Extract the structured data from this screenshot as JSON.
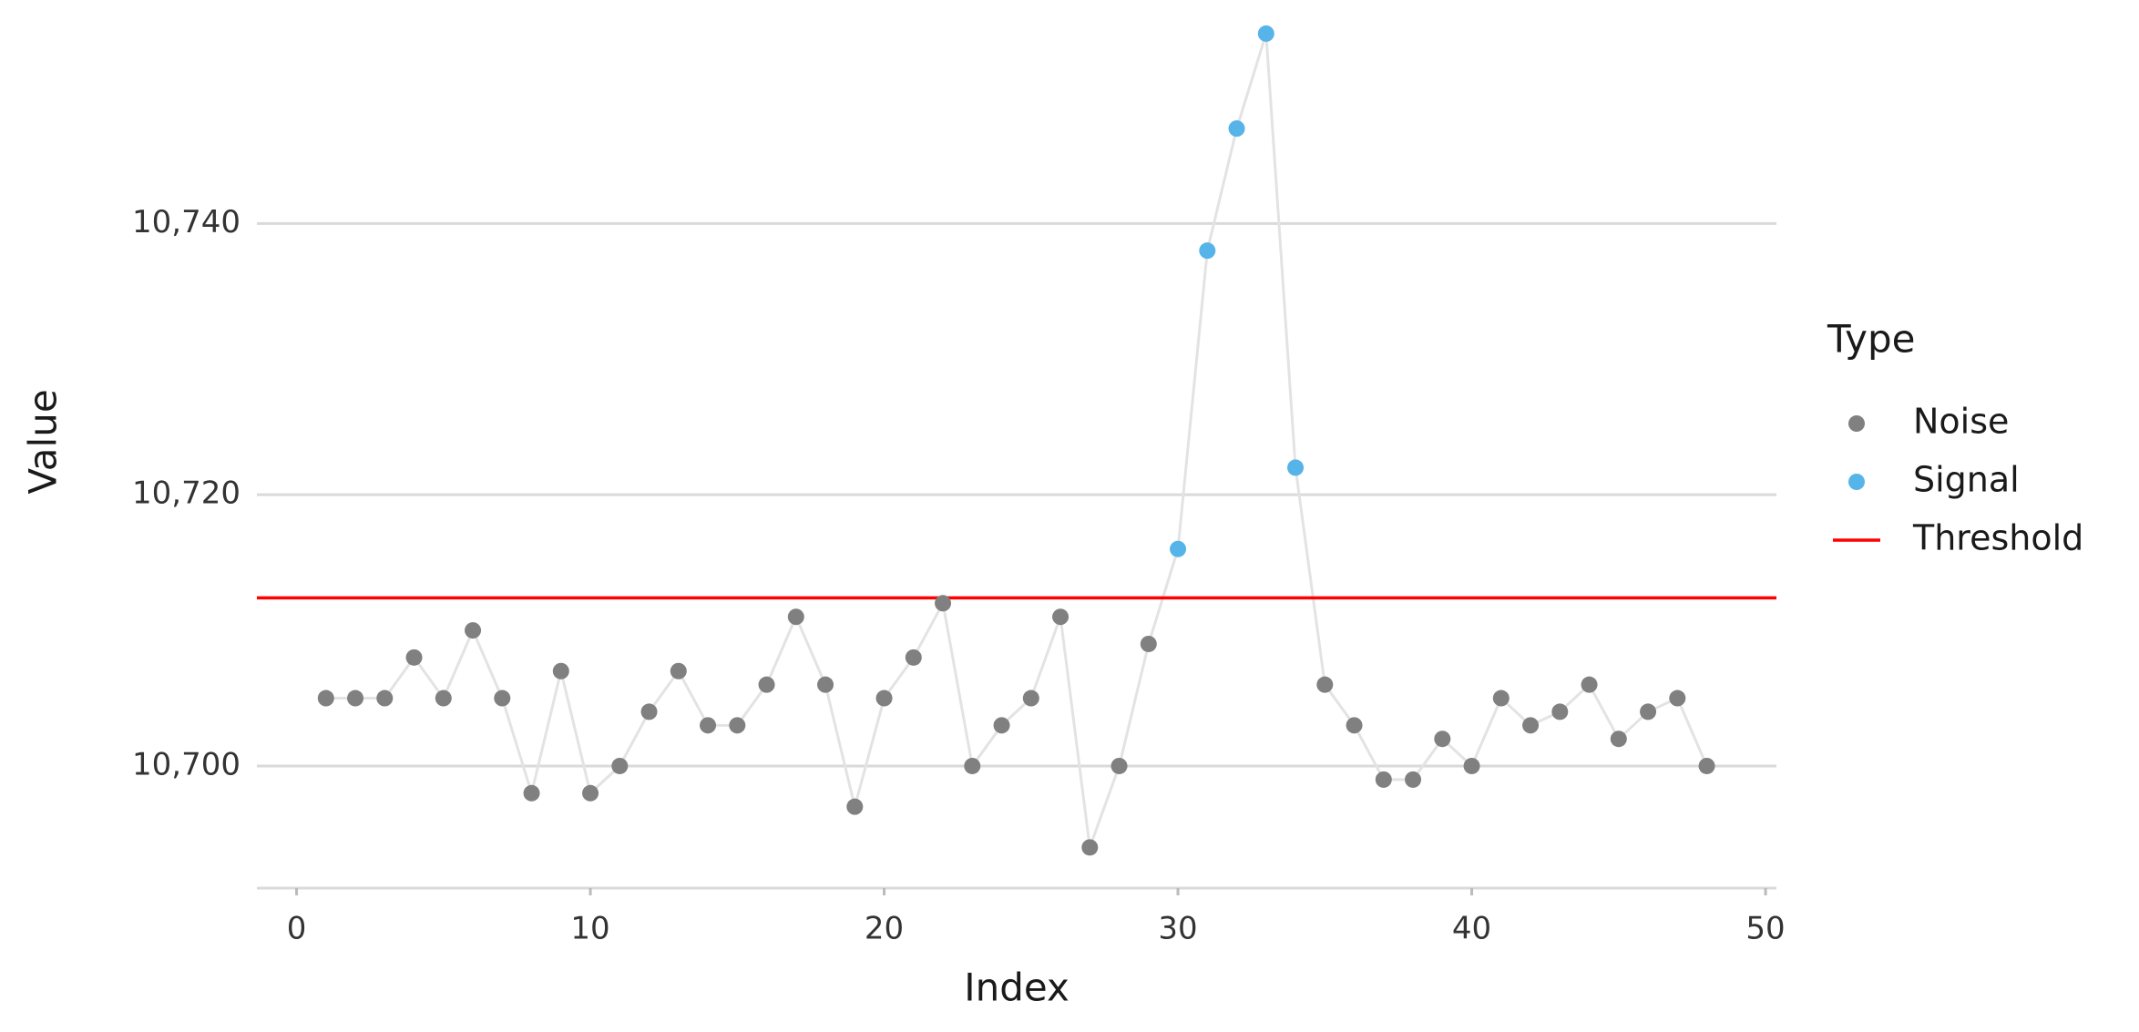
{
  "chart_data": {
    "type": "line-scatter",
    "x_label": "Index",
    "y_label": "Value",
    "legend_title": "Type",
    "x": [
      1,
      2,
      3,
      4,
      5,
      6,
      7,
      8,
      9,
      10,
      11,
      12,
      13,
      14,
      15,
      16,
      17,
      18,
      19,
      20,
      21,
      22,
      23,
      24,
      25,
      26,
      27,
      28,
      29,
      30,
      31,
      32,
      33,
      34,
      35,
      36,
      37,
      38,
      39,
      40,
      41,
      42,
      43,
      44,
      45,
      46,
      47,
      48
    ],
    "series": [
      {
        "name": "Noise",
        "color": "#808080",
        "values": [
          10705,
          10705,
          10705,
          10708,
          10705,
          10710,
          10705,
          10698,
          10707,
          10698,
          10700,
          10704,
          10707,
          10703,
          10703,
          10706,
          10711,
          10706,
          10697,
          10705,
          10708,
          10712,
          10700,
          10703,
          10705,
          10711,
          10694,
          10700,
          10709,
          null,
          null,
          null,
          null,
          null,
          10706,
          10703,
          10699,
          10699,
          10702,
          10700,
          10705,
          10703,
          10704,
          10706,
          10702,
          10704,
          10705,
          10700
        ]
      },
      {
        "name": "Signal",
        "color": "#56b4e9",
        "values": [
          null,
          null,
          null,
          null,
          null,
          null,
          null,
          null,
          null,
          null,
          null,
          null,
          null,
          null,
          null,
          null,
          null,
          null,
          null,
          null,
          null,
          null,
          null,
          null,
          null,
          null,
          null,
          null,
          null,
          10716,
          10738,
          10747,
          10754,
          10722,
          null,
          null,
          null,
          null,
          null,
          null,
          null,
          null,
          null,
          null,
          null,
          null,
          null,
          null
        ]
      }
    ],
    "line_color": "#e3e3e3",
    "threshold": {
      "name": "Threshold",
      "value": 10712.4,
      "color": "#ff0000"
    },
    "xlim": [
      -1.35,
      50.37
    ],
    "xticks": [
      0,
      10,
      20,
      30,
      40,
      50
    ],
    "ylim": [
      10691,
      10755
    ],
    "yticks": [
      {
        "value": 10700,
        "label": "10,700"
      },
      {
        "value": 10720,
        "label": "10,720"
      },
      {
        "value": 10740,
        "label": "10,740"
      }
    ],
    "grid": true,
    "legend_position": "right"
  }
}
